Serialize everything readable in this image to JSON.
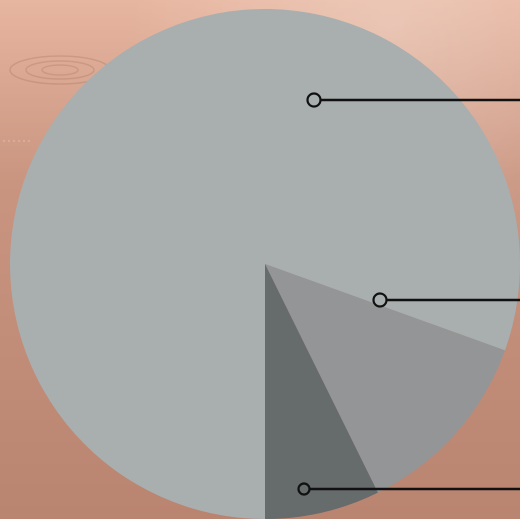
{
  "background": {
    "base_color": "#c99580",
    "highlight_color": "#e7b6a0",
    "shadow_color": "#b98470"
  },
  "chart_data": {
    "type": "pie",
    "title": "",
    "start_angle_deg": 180,
    "direction": "clockwise",
    "series": [
      {
        "slices": [
          {
            "label": "",
            "value": 80.5,
            "color": "#a9aeaf"
          },
          {
            "label": "",
            "value": 12.2,
            "color": "#939596"
          },
          {
            "label": "",
            "value": 7.3,
            "color": "#666b6b"
          }
        ]
      }
    ],
    "callout": {
      "line_color": "#111111",
      "marker": "hollow-circle"
    }
  }
}
